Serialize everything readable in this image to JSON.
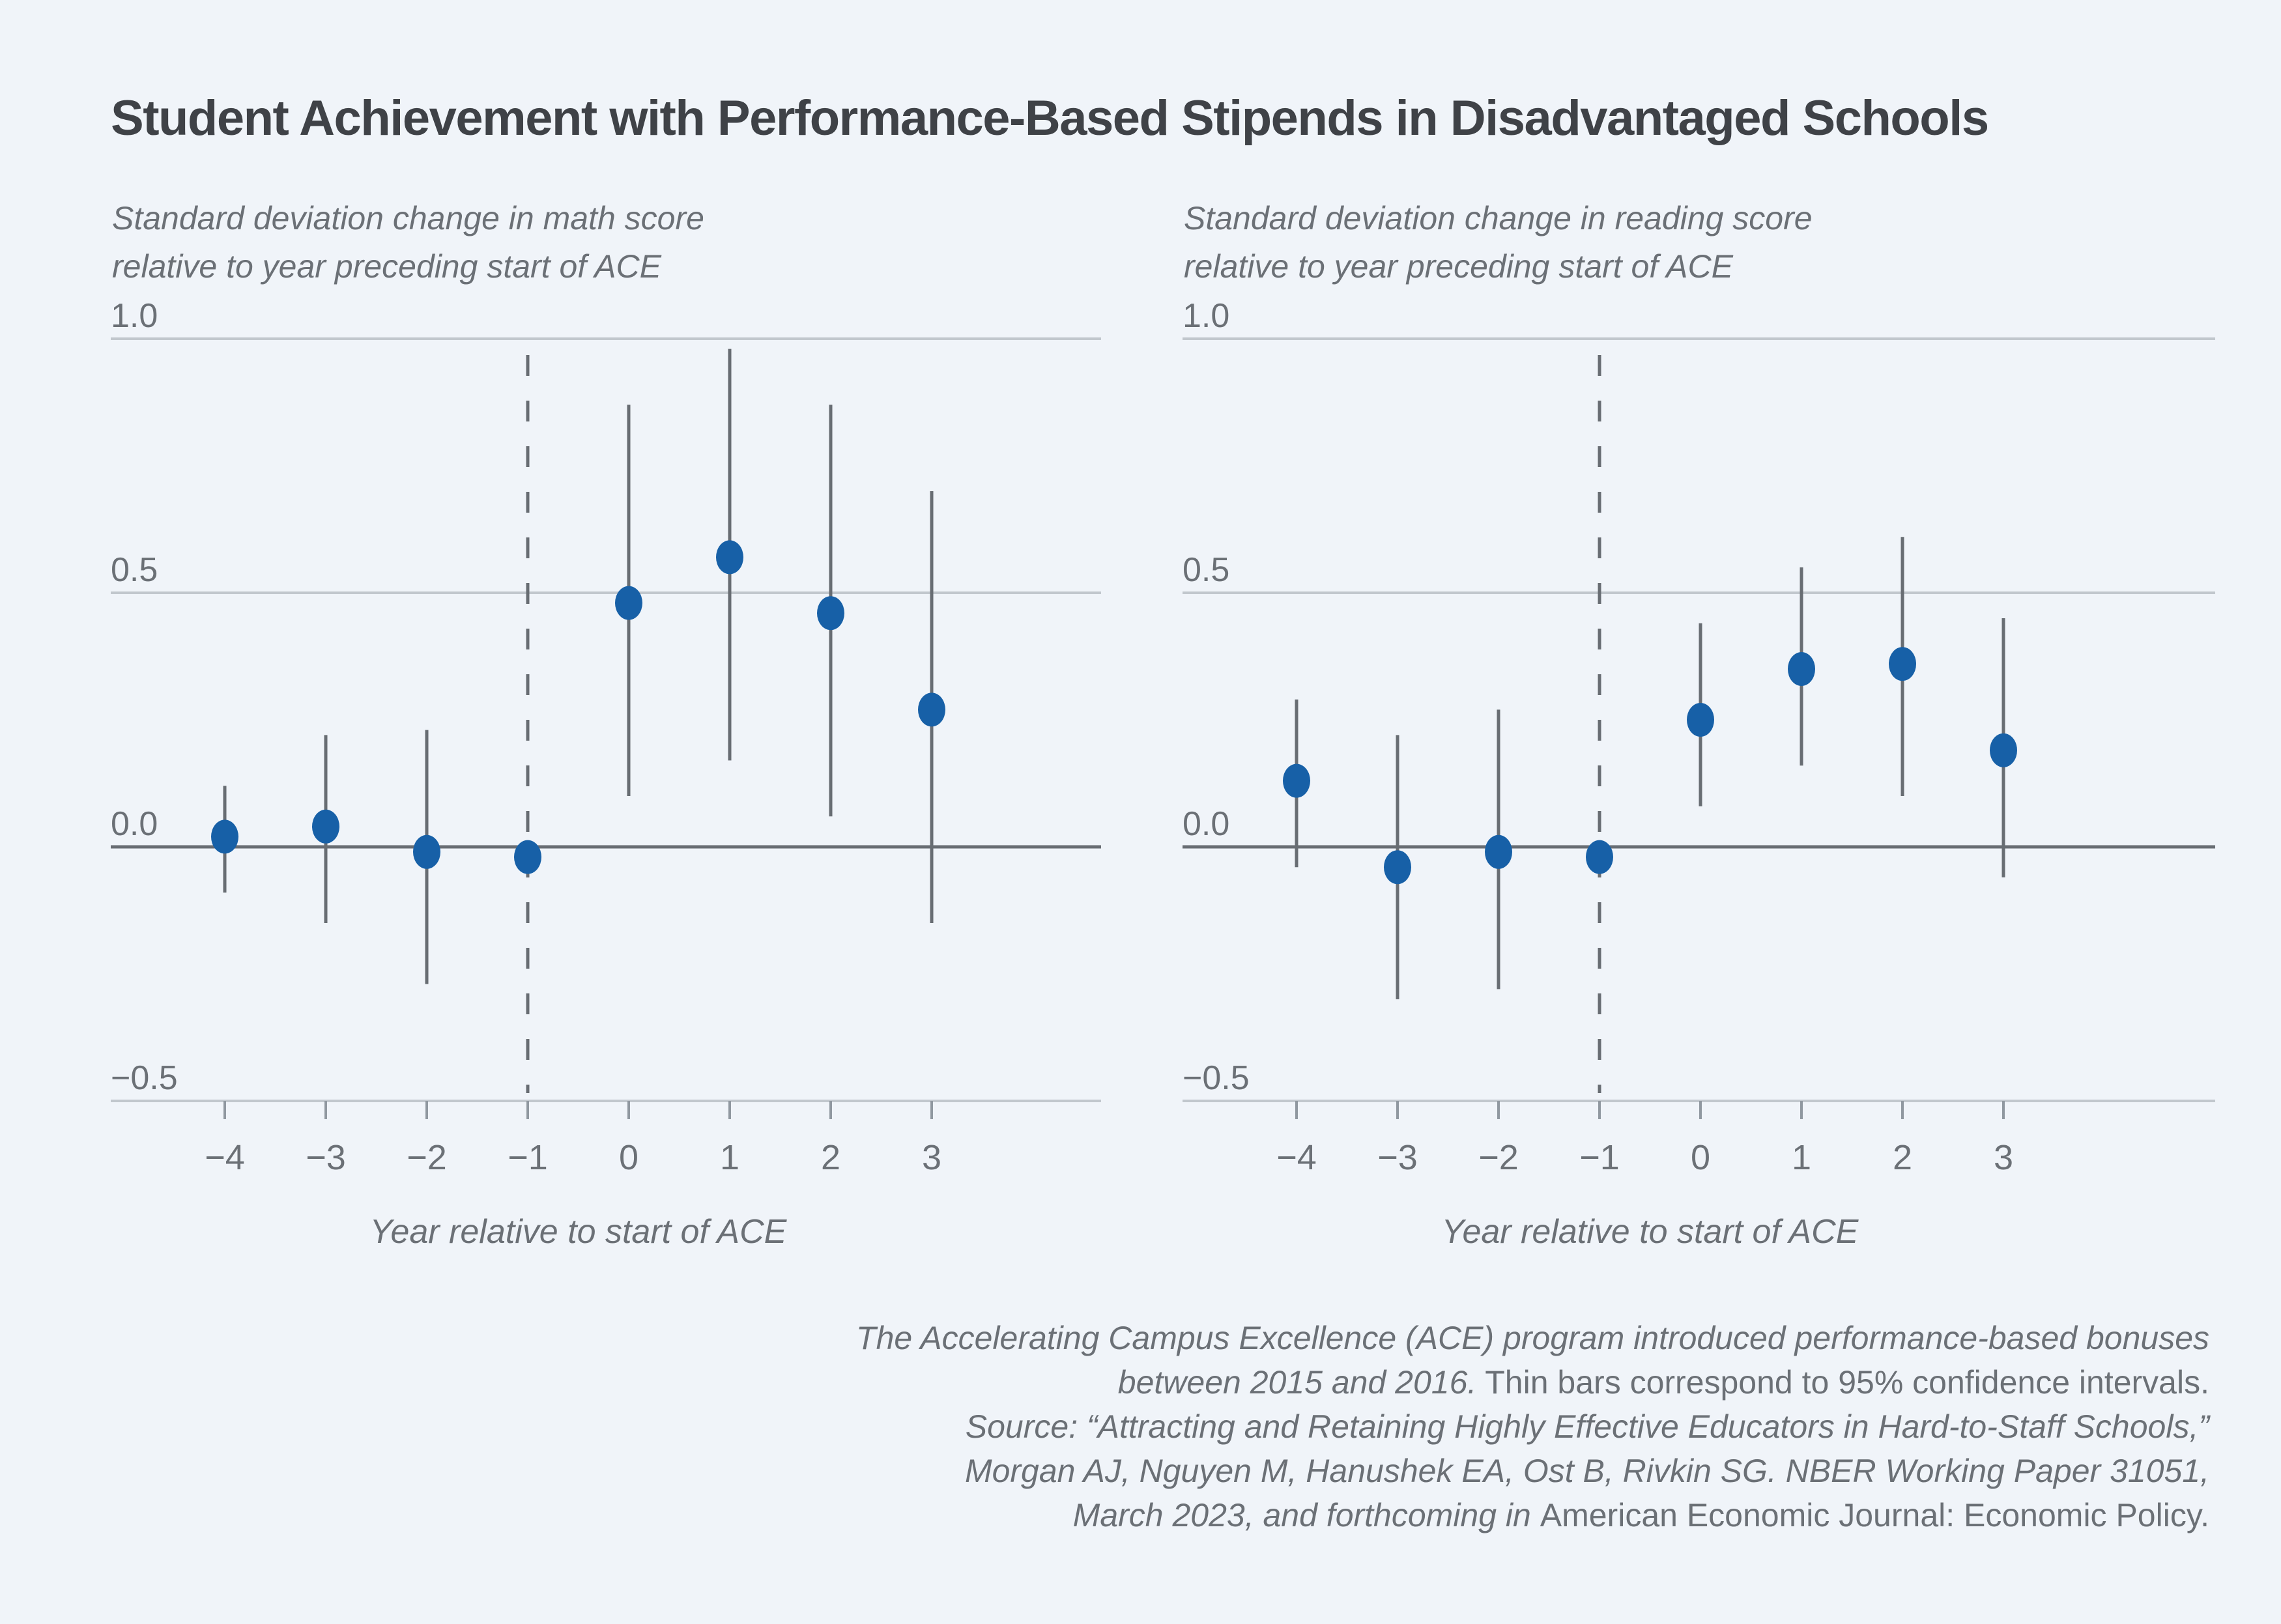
{
  "page": {
    "background": "#f0f4f9"
  },
  "header": {
    "title": "Student Achievement with Performance-Based Stipends in Disadvantaged Schools"
  },
  "colors": {
    "background": "#f0f4f9",
    "title_text": "#3f4247",
    "gray_text": "#6b7076",
    "gridline": "#c1c7cd",
    "axis_dark": "#686d73",
    "tick_mark": "#9098a0",
    "point_blue": "#1760a7"
  },
  "chart_data": [
    {
      "type": "scatter",
      "id": "math",
      "subtitle_line1": "Standard deviation change in math score",
      "subtitle_line2": "relative to year preceding start of ACE",
      "xlabel": "Year relative to start of ACE",
      "x": [
        -4,
        -3,
        -2,
        -1,
        0,
        1,
        2,
        3
      ],
      "values": [
        0.02,
        0.04,
        -0.01,
        -0.02,
        0.48,
        0.57,
        0.46,
        0.27
      ],
      "ci_low": [
        -0.09,
        -0.15,
        -0.27,
        null,
        0.1,
        0.17,
        0.06,
        -0.15
      ],
      "ci_high": [
        0.12,
        0.22,
        0.23,
        null,
        0.87,
        0.98,
        0.87,
        0.7
      ],
      "ci_note": "Thin bars correspond to 95% confidence intervals",
      "xticks": [
        "−4",
        "−3",
        "−2",
        "−1",
        "0",
        "1",
        "2",
        "3"
      ],
      "yticks": [
        "1.0",
        "0.5",
        "0.0",
        "−0.5"
      ],
      "ytick_values": [
        1.0,
        0.5,
        0.0,
        -0.5
      ],
      "ylim": [
        -0.5,
        1.0
      ],
      "reference_dashed_line_x": -1,
      "grid": true,
      "legend": "none"
    },
    {
      "type": "scatter",
      "id": "reading",
      "subtitle_line1": "Standard deviation change in reading score",
      "subtitle_line2": "relative to year preceding start of ACE",
      "xlabel": "Year relative to start of ACE",
      "x": [
        -4,
        -3,
        -2,
        -1,
        0,
        1,
        2,
        3
      ],
      "values": [
        0.13,
        -0.04,
        -0.01,
        -0.02,
        0.25,
        0.35,
        0.36,
        0.19
      ],
      "ci_low": [
        -0.04,
        -0.3,
        -0.28,
        null,
        0.08,
        0.16,
        0.1,
        -0.06
      ],
      "ci_high": [
        0.29,
        0.22,
        0.27,
        null,
        0.44,
        0.55,
        0.61,
        0.45
      ],
      "ci_note": "Thin bars correspond to 95% confidence intervals",
      "xticks": [
        "−4",
        "−3",
        "−2",
        "−1",
        "0",
        "1",
        "2",
        "3"
      ],
      "yticks": [
        "1.0",
        "0.5",
        "0.0",
        "−0.5"
      ],
      "ytick_values": [
        1.0,
        0.5,
        0.0,
        -0.5
      ],
      "ylim": [
        -0.5,
        1.0
      ],
      "reference_dashed_line_x": -1,
      "grid": true,
      "legend": "none"
    }
  ],
  "caption": {
    "lines": [
      [
        {
          "text": "The Accelerating Campus Excellence (ACE) program introduced performance-based bonuses",
          "style": "italic"
        }
      ],
      [
        {
          "text": "between 2015 and 2016.",
          "style": "italic"
        },
        {
          "text": " Thin bars correspond to 95% confidence intervals.",
          "style": "roman"
        }
      ],
      [
        {
          "text": "Source: “Attracting and Retaining Highly Effective Educators in Hard-to-Staff Schools,”",
          "style": "italic"
        }
      ],
      [
        {
          "text": "Morgan AJ, Nguyen M, Hanushek EA, Ost B, Rivkin SG. NBER Working Paper 31051,",
          "style": "italic"
        }
      ],
      [
        {
          "text": "March 2023, and forthcoming in ",
          "style": "italic"
        },
        {
          "text": "American Economic Journal: Economic Policy.",
          "style": "roman"
        }
      ]
    ]
  }
}
